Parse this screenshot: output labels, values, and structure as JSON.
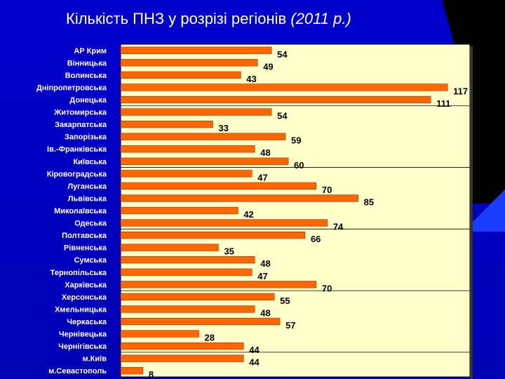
{
  "title": {
    "main": "Кількість ПНЗ у розрізі регіонів",
    "year": "(2011 р.)"
  },
  "colors": {
    "background": "#0000cc",
    "plot_area": "#ffffcc",
    "bar": "#ff6600"
  },
  "chart_data": {
    "type": "bar",
    "orientation": "horizontal",
    "categories": [
      "АР Крим",
      "Вінницька",
      "Волинська",
      "Дніпропетровська",
      "Донецька",
      "Житомирська",
      "Закарпатська",
      "Запорізька",
      "Ів.-Франківська",
      "Київська",
      "Кіровоградська",
      "Луганська",
      "Львівська",
      "Миколаївська",
      "Одеська",
      "Полтавська",
      "Рівненська",
      "Сумська",
      "Тернопільська",
      "Харківська",
      "Херсонська",
      "Хмельницька",
      "Черкаська",
      "Чернівецька",
      "Чернігівська",
      "м.Київ",
      "м.Севастополь"
    ],
    "values": [
      54,
      49,
      43,
      117,
      111,
      54,
      33,
      59,
      48,
      60,
      47,
      70,
      85,
      42,
      74,
      66,
      35,
      48,
      47,
      70,
      55,
      48,
      57,
      28,
      44,
      44,
      8
    ],
    "xlim": [
      0,
      125
    ],
    "grid": "horizontal lines",
    "legend": "none"
  }
}
